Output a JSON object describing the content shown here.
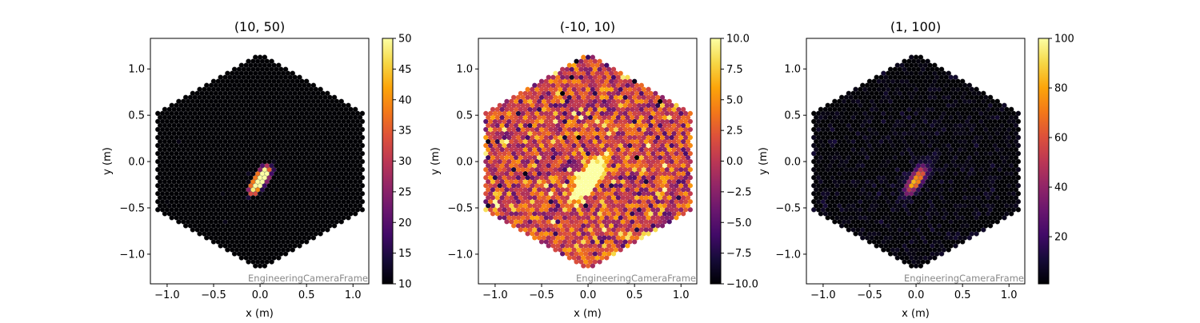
{
  "chart_data": [
    {
      "type": "heatmap",
      "title": "(10, 50)",
      "xlabel": "x  (m)",
      "ylabel": "y  (m)",
      "xlim": [
        -1.18,
        1.17
      ],
      "ylim": [
        -1.32,
        1.33
      ],
      "xticks": [
        -1.0,
        -0.5,
        0.0,
        0.5,
        1.0
      ],
      "xtick_labels": [
        "−1.0",
        "−0.5",
        "0.0",
        "0.5",
        "1.0"
      ],
      "yticks": [
        -1.0,
        -0.5,
        0.0,
        0.5,
        1.0
      ],
      "ytick_labels": [
        "−1.0",
        "−0.5",
        "0.0",
        "0.5",
        "1.0"
      ],
      "colormap": "inferno",
      "pixel_edges": true,
      "colorbar": {
        "min": 10,
        "max": 50,
        "ticks": [
          10,
          15,
          20,
          25,
          30,
          35,
          40,
          45,
          50
        ],
        "tick_labels": [
          "10",
          "15",
          "20",
          "25",
          "30",
          "35",
          "40",
          "45",
          "50"
        ]
      },
      "annotation": "EngineeringCameraFrame"
    },
    {
      "type": "heatmap",
      "title": "(-10, 10)",
      "xlabel": "x  (m)",
      "ylabel": "y  (m)",
      "xlim": [
        -1.18,
        1.17
      ],
      "ylim": [
        -1.32,
        1.33
      ],
      "xticks": [
        -1.0,
        -0.5,
        0.0,
        0.5,
        1.0
      ],
      "xtick_labels": [
        "−1.0",
        "−0.5",
        "0.0",
        "0.5",
        "1.0"
      ],
      "yticks": [
        -1.0,
        -0.5,
        0.0,
        0.5,
        1.0
      ],
      "ytick_labels": [
        "−1.0",
        "−0.5",
        "0.0",
        "0.5",
        "1.0"
      ],
      "colormap": "inferno",
      "pixel_edges": false,
      "colorbar": {
        "min": -10,
        "max": 10,
        "ticks": [
          -10,
          -7.5,
          -5,
          -2.5,
          0,
          2.5,
          5,
          7.5,
          10
        ],
        "tick_labels": [
          "−10.0",
          "−7.5",
          "−5.0",
          "−2.5",
          "0.0",
          "2.5",
          "5.0",
          "7.5",
          "10.0"
        ]
      },
      "annotation": "EngineeringCameraFrame"
    },
    {
      "type": "heatmap",
      "title": "(1, 100)",
      "xlabel": "x  (m)",
      "ylabel": "y  (m)",
      "xlim": [
        -1.18,
        1.17
      ],
      "ylim": [
        -1.32,
        1.33
      ],
      "xticks": [
        -1.0,
        -0.5,
        0.0,
        0.5,
        1.0
      ],
      "xtick_labels": [
        "−1.0",
        "−0.5",
        "0.0",
        "0.5",
        "1.0"
      ],
      "yticks": [
        -1.0,
        -0.5,
        0.0,
        0.5,
        1.0
      ],
      "ytick_labels": [
        "−1.0",
        "−0.5",
        "0.0",
        "0.5",
        "1.0"
      ],
      "colormap": "inferno",
      "pixel_edges": true,
      "colorbar": {
        "min": 1,
        "max": 100,
        "ticks": [
          20,
          40,
          60,
          80,
          100
        ],
        "tick_labels": [
          "20",
          "40",
          "60",
          "80",
          "100"
        ]
      },
      "annotation": "EngineeringCameraFrame"
    }
  ]
}
